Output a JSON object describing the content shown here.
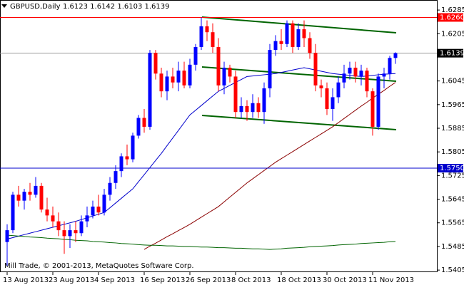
{
  "chart_data": {
    "type": "candlestick",
    "title": "GBPUSD,Daily",
    "quote": "1.6123 1.6142 1.6103 1.6139",
    "footer": "Mill Trade, © 2001-2013, MetaQuotes Software Corp.",
    "categories": [
      "13 Aug 2013",
      null,
      null,
      null,
      null,
      null,
      null,
      null,
      "23 Aug 2013",
      null,
      null,
      null,
      null,
      null,
      null,
      null,
      "4 Sep 2013",
      null,
      null,
      null,
      null,
      null,
      null,
      null,
      "16 Sep 2013",
      null,
      null,
      null,
      null,
      null,
      null,
      null,
      "26 Sep 2013",
      null,
      null,
      null,
      null,
      null,
      null,
      null,
      "8 Oct 2013",
      null,
      null,
      null,
      null,
      null,
      null,
      null,
      "18 Oct 2013",
      null,
      null,
      null,
      null,
      null,
      null,
      null,
      "30 Oct 2013",
      null,
      null,
      null,
      null,
      null,
      null,
      null,
      "11 Nov 2013",
      null,
      null,
      null,
      null
    ],
    "opens": [
      1.55,
      1.554,
      1.566,
      1.564,
      1.567,
      1.566,
      1.569,
      1.561,
      1.559,
      1.557,
      1.554,
      1.552,
      1.554,
      1.553,
      1.557,
      1.559,
      1.562,
      1.56,
      1.566,
      1.57,
      1.574,
      1.579,
      1.578,
      1.586,
      1.592,
      1.589,
      1.614,
      1.607,
      1.601,
      1.606,
      1.604,
      1.608,
      1.603,
      1.61,
      1.616,
      1.623,
      1.621,
      1.616,
      1.603,
      1.609,
      1.606,
      1.594,
      1.596,
      1.594,
      1.597,
      1.594,
      1.602,
      1.615,
      1.618,
      1.617,
      1.624,
      1.616,
      1.622,
      1.619,
      1.614,
      1.603,
      1.602,
      1.595,
      1.599,
      1.604,
      1.607,
      1.609,
      1.606,
      1.608,
      1.601,
      1.589,
      1.606,
      1.607,
      1.6123
    ],
    "highs": [
      1.556,
      1.567,
      1.569,
      1.568,
      1.57,
      1.572,
      1.57,
      1.565,
      1.562,
      1.56,
      1.557,
      1.556,
      1.557,
      1.559,
      1.562,
      1.564,
      1.566,
      1.568,
      1.572,
      1.576,
      1.58,
      1.583,
      1.587,
      1.593,
      1.595,
      1.615,
      1.615,
      1.609,
      1.608,
      1.609,
      1.611,
      1.611,
      1.612,
      1.617,
      1.626,
      1.625,
      1.624,
      1.619,
      1.611,
      1.61,
      1.608,
      1.599,
      1.598,
      1.6,
      1.599,
      1.604,
      1.617,
      1.62,
      1.622,
      1.625,
      1.625,
      1.624,
      1.625,
      1.621,
      1.617,
      1.605,
      1.604,
      1.602,
      1.606,
      1.61,
      1.611,
      1.611,
      1.61,
      1.609,
      1.602,
      1.607,
      1.609,
      1.613,
      1.6142
    ],
    "lows": [
      1.542,
      1.553,
      1.562,
      1.561,
      1.564,
      1.565,
      1.56,
      1.557,
      1.555,
      1.552,
      1.546,
      1.548,
      1.55,
      1.552,
      1.555,
      1.558,
      1.559,
      1.559,
      1.564,
      1.568,
      1.572,
      1.576,
      1.577,
      1.585,
      1.587,
      1.588,
      1.605,
      1.599,
      1.598,
      1.602,
      1.601,
      1.602,
      1.602,
      1.608,
      1.615,
      1.618,
      1.614,
      1.601,
      1.6,
      1.604,
      1.592,
      1.592,
      1.591,
      1.592,
      1.592,
      1.59,
      1.599,
      1.613,
      1.615,
      1.616,
      1.614,
      1.615,
      1.616,
      1.612,
      1.601,
      1.599,
      1.593,
      1.591,
      1.597,
      1.602,
      1.605,
      1.604,
      1.603,
      1.599,
      1.586,
      1.588,
      1.602,
      1.605,
      1.6103
    ],
    "closes": [
      1.554,
      1.566,
      1.564,
      1.567,
      1.566,
      1.569,
      1.561,
      1.559,
      1.557,
      1.554,
      1.552,
      1.554,
      1.553,
      1.557,
      1.559,
      1.562,
      1.56,
      1.566,
      1.57,
      1.574,
      1.579,
      1.578,
      1.586,
      1.592,
      1.589,
      1.614,
      1.607,
      1.601,
      1.606,
      1.604,
      1.608,
      1.603,
      1.61,
      1.616,
      1.623,
      1.621,
      1.616,
      1.603,
      1.609,
      1.606,
      1.594,
      1.596,
      1.594,
      1.597,
      1.594,
      1.602,
      1.615,
      1.618,
      1.617,
      1.624,
      1.616,
      1.622,
      1.619,
      1.614,
      1.603,
      1.602,
      1.595,
      1.599,
      1.604,
      1.607,
      1.609,
      1.606,
      1.608,
      1.601,
      1.589,
      1.606,
      1.607,
      1.6123,
      1.6139
    ],
    "up_color": "#0000ff",
    "down_color": "#ff0000",
    "indicators": [
      {
        "color": "#0000cc",
        "values": [
          1.551,
          1.5515,
          1.552,
          1.5525,
          1.553,
          1.5535,
          1.554,
          1.5545,
          1.555,
          1.5555,
          1.556,
          1.5565,
          1.557,
          1.5576,
          1.5582,
          1.5588,
          1.5594,
          1.56,
          1.5616,
          1.5632,
          1.5648,
          1.5664,
          1.568,
          1.5704,
          1.5728,
          1.5752,
          1.5776,
          1.58,
          1.5826,
          1.5852,
          1.5878,
          1.5904,
          1.593,
          1.5946,
          1.5962,
          1.5978,
          1.5994,
          1.601,
          1.602,
          1.603,
          1.604,
          1.605,
          1.606,
          1.6062,
          1.6064,
          1.6066,
          1.6068,
          1.607,
          1.6074,
          1.6078,
          1.6082,
          1.6086,
          1.609,
          1.6086,
          1.6082,
          1.6078,
          1.6074,
          1.607,
          1.6068,
          1.6066,
          1.6064,
          1.6062,
          1.606,
          1.6062,
          1.6064,
          1.6066,
          1.6068,
          1.6069,
          1.607
        ]
      },
      {
        "color": "#8b0000",
        "values": [
          null,
          null,
          null,
          null,
          null,
          null,
          null,
          null,
          null,
          null,
          null,
          null,
          null,
          null,
          null,
          null,
          null,
          null,
          null,
          null,
          null,
          null,
          null,
          null,
          1.5475,
          1.5486,
          1.5496,
          1.5507,
          1.5518,
          1.5528,
          1.5539,
          1.5549,
          1.556,
          1.5572,
          1.5584,
          1.5596,
          1.5608,
          1.562,
          1.5636,
          1.5652,
          1.5668,
          1.5684,
          1.57,
          1.5714,
          1.5728,
          1.5742,
          1.5756,
          1.577,
          1.5782,
          1.5794,
          1.5806,
          1.5818,
          1.583,
          1.5842,
          1.5854,
          1.5866,
          1.5878,
          1.589,
          1.5904,
          1.5918,
          1.5932,
          1.5946,
          1.596,
          1.5973,
          1.5987,
          1.6,
          1.6013,
          1.6027,
          1.604
        ]
      },
      {
        "color": "#006400",
        "values": [
          1.5523,
          1.5522,
          1.552,
          1.5519,
          1.5517,
          1.5516,
          1.5515,
          1.5513,
          1.5512,
          1.5511,
          1.5509,
          1.5508,
          1.5506,
          1.5505,
          1.5504,
          1.5502,
          1.5501,
          1.55,
          1.5498,
          1.5497,
          1.5495,
          1.5494,
          1.5493,
          1.5491,
          1.549,
          1.5489,
          1.5489,
          1.5488,
          1.5487,
          1.5487,
          1.5486,
          1.5485,
          1.5485,
          1.5484,
          1.5483,
          1.5483,
          1.5482,
          1.5481,
          1.5481,
          1.548,
          1.5479,
          1.5479,
          1.5478,
          1.5477,
          1.5477,
          1.5476,
          1.5475,
          1.5476,
          1.5477,
          1.5479,
          1.548,
          1.5481,
          1.5482,
          1.5484,
          1.5485,
          1.5486,
          1.5487,
          1.5488,
          1.549,
          1.5491,
          1.5492,
          1.5493,
          1.5495,
          1.5496,
          1.5497,
          1.5498,
          1.5499,
          1.5501,
          1.5502
        ]
      }
    ],
    "levels": [
      {
        "value": 1.626,
        "label": "1.6260",
        "color": "#ff0000"
      },
      {
        "value": 1.575,
        "label": "1.5750",
        "color": "#0000cc"
      },
      {
        "value": 1.6139,
        "label": "1.6139",
        "color": "#000000"
      }
    ],
    "ylim": [
      1.5398,
      1.6319
    ],
    "yticks": [
      1.6285,
      1.6205,
      1.6045,
      1.5965,
      1.5885,
      1.5805,
      1.5725,
      1.5645,
      1.5565,
      1.5485,
      1.5405
    ]
  }
}
